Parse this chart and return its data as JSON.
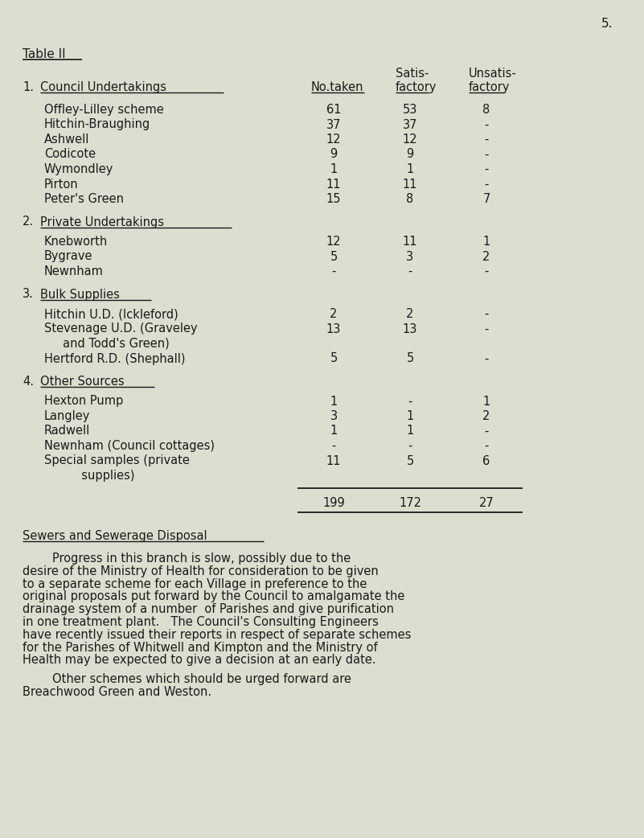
{
  "page_number": "5.",
  "title": "Table II",
  "background_color": "#deded0",
  "text_color": "#1a1a1a",
  "font_family": "Courier New",
  "section1_title_num": "1.",
  "section1_title_text": "Council Undertakings",
  "section1_rows": [
    [
      "Offley-Lilley scheme",
      "61",
      "53",
      "8"
    ],
    [
      "Hitchin-Braughing",
      "37",
      "37",
      "-"
    ],
    [
      "Ashwell",
      "12",
      "12",
      "-"
    ],
    [
      "Codicote",
      "9",
      "9",
      "-"
    ],
    [
      "Wymondley",
      "1",
      "1",
      "-"
    ],
    [
      "Pirton",
      "11",
      "11",
      "-"
    ],
    [
      "Peter's Green",
      "15",
      "8",
      "7"
    ]
  ],
  "section2_title_num": "2.",
  "section2_title_text": "Private Undertakings",
  "section2_rows": [
    [
      "Knebworth",
      "12",
      "11",
      "1"
    ],
    [
      "Bygrave",
      "5",
      "3",
      "2"
    ],
    [
      "Newnham",
      "-",
      "-",
      "-"
    ]
  ],
  "section3_title_num": "3.",
  "section3_title_text": "Bulk Supplies",
  "section3_rows": [
    [
      "Hitchin U.D. (Ickleford)",
      "2",
      "2",
      "-"
    ],
    [
      "Stevenage U.D. (Graveley",
      "13",
      "13",
      "-"
    ],
    [
      "     and Todd's Green)",
      "",
      "",
      ""
    ],
    [
      "Hertford R.D. (Shephall)",
      "5",
      "5",
      "-"
    ]
  ],
  "section4_title_num": "4.",
  "section4_title_text": "Other Sources",
  "section4_rows": [
    [
      "Hexton Pump",
      "1",
      "-",
      "1"
    ],
    [
      "Langley",
      "3",
      "1",
      "2"
    ],
    [
      "Radwell",
      "1",
      "1",
      "-"
    ],
    [
      "Newnham (Council cottages)",
      "-",
      "-",
      "-"
    ],
    [
      "Special samples (private",
      "11",
      "5",
      "6"
    ],
    [
      "          supplies)",
      "",
      "",
      ""
    ]
  ],
  "total_row": [
    "199",
    "172",
    "27"
  ],
  "sewer_heading": "Sewers and Sewerage Disposal",
  "para1_lines": [
    "        Progress in this branch is slow, possibly due to the",
    "desire of the Ministry of Health for consideration to be given",
    "to a separate scheme for each Village in preference to the",
    "original proposals put forward by the Council to amalgamate the",
    "drainage system of a number  of Parishes and give purification",
    "in one treatment plant.   The Council's Consulting Engineers",
    "have recently issued their reports in respect of separate schemes",
    "for the Parishes of Whitwell and Kimpton and the Ministry of",
    "Health may be expected to give a decision at an early date."
  ],
  "para2_lines": [
    "        Other schemes which should be urged forward are",
    "Breachwood Green and Weston."
  ]
}
